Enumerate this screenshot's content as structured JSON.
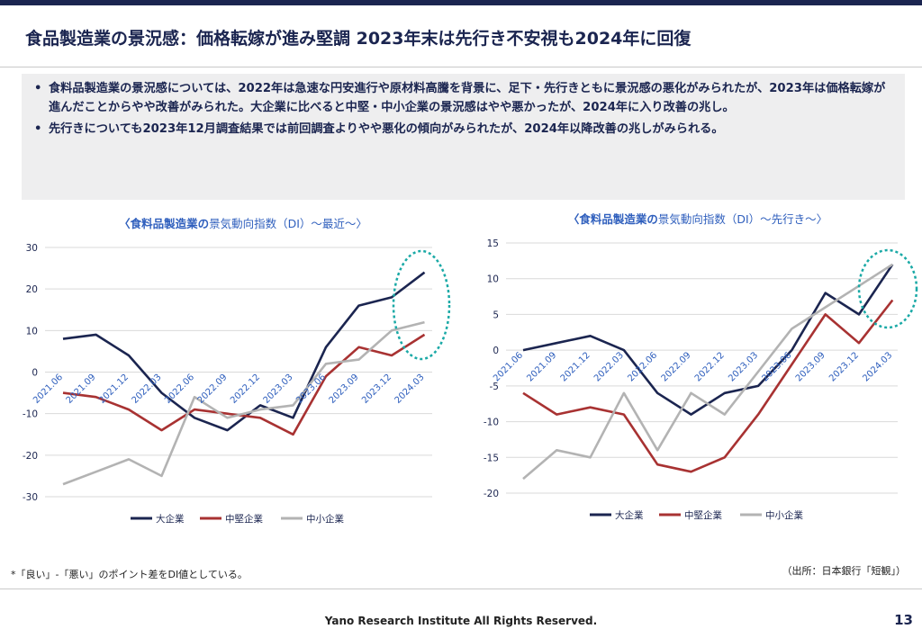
{
  "title": "食品製造業の景況感：価格転嫁が進み堅調 2023年末は先行き不安視も2024年に回復",
  "summary": [
    "食料品製造業の景況感については、2022年は急速な円安進行や原材料高騰を背景に、足下・先行きともに景況感の悪化がみられたが、2023年は価格転嫁が進んだことからやや改善がみられた。大企業に比べると中堅・中小企業の景況感はやや悪かったが、2024年に入り改善の兆し。",
    "先行きについても2023年12月調査結果では前回調査よりやや悪化の傾向がみられたが、2024年以降改善の兆しがみられる。"
  ],
  "colors": {
    "large": "#1b2550",
    "mid": "#a83232",
    "small": "#b3b3b3",
    "highlight": "#1aa9a6"
  },
  "chart_data": [
    {
      "type": "line",
      "title_bold": "〈食料品製造業の",
      "title_rest": "景気動向指数（DI）～最近～〉",
      "categories": [
        "2021.06",
        "2021.09",
        "2021.12",
        "2022.03",
        "2022.06",
        "2022.09",
        "2022.12",
        "2023.03",
        "2023.06",
        "2023.09",
        "2023.12",
        "2024.03"
      ],
      "ylim": [
        -30,
        30
      ],
      "yticks": [
        -30,
        -20,
        -10,
        0,
        10,
        20,
        30
      ],
      "series": [
        {
          "name": "大企業",
          "key": "large",
          "values": [
            8,
            9,
            4,
            -5,
            -11,
            -14,
            -8,
            -11,
            6,
            16,
            18,
            24
          ]
        },
        {
          "name": "中堅企業",
          "key": "mid",
          "values": [
            -5,
            -6,
            -9,
            -14,
            -9,
            -10,
            -11,
            -15,
            -1,
            6,
            4,
            9
          ]
        },
        {
          "name": "中小企業",
          "key": "small",
          "values": [
            -27,
            -24,
            -21,
            -25,
            -6,
            -11,
            -9,
            -8,
            2,
            3,
            10,
            12
          ]
        }
      ],
      "legend": "bottom"
    },
    {
      "type": "line",
      "title_bold": "〈食料品製造業の",
      "title_rest": "景気動向指数（DI）～先行き～〉",
      "categories": [
        "2021.06",
        "2021.09",
        "2021.12",
        "2022.03",
        "2022.06",
        "2022.09",
        "2022.12",
        "2023.03",
        "2023.06",
        "2023.09",
        "2023.12",
        "2024.03"
      ],
      "ylim": [
        -20,
        15
      ],
      "yticks": [
        -20,
        -15,
        -10,
        -5,
        0,
        5,
        10,
        15
      ],
      "series": [
        {
          "name": "大企業",
          "key": "large",
          "values": [
            0,
            1,
            2,
            0,
            -6,
            -9,
            -6,
            -5,
            0,
            8,
            5,
            12
          ]
        },
        {
          "name": "中堅企業",
          "key": "mid",
          "values": [
            -6,
            -9,
            -8,
            -9,
            -16,
            -17,
            -15,
            -9,
            -2,
            5,
            1,
            7
          ]
        },
        {
          "name": "中小企業",
          "key": "small",
          "values": [
            -18,
            -14,
            -15,
            -6,
            -14,
            -6,
            -9,
            -3,
            3,
            6,
            9,
            12
          ]
        }
      ],
      "legend": "bottom"
    }
  ],
  "note": "*「良い」-「悪い」のポイント差をDI値としている。",
  "source": "（出所：日本銀行「短観」）",
  "footer": "Yano Research Institute All Rights Reserved.",
  "page_number": "13"
}
